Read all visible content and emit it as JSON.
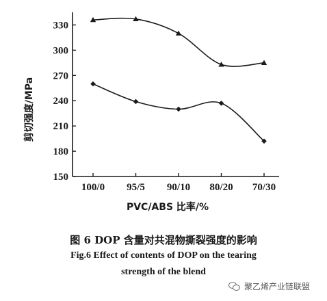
{
  "chart_data": {
    "type": "line",
    "categories": [
      "100/0",
      "95/5",
      "90/10",
      "80/20",
      "70/30"
    ],
    "series": [
      {
        "values": [
          336,
          337,
          320,
          283,
          285
        ],
        "marker": "triangle",
        "color": "#1a1a1a"
      },
      {
        "values": [
          260,
          239,
          230,
          237,
          192
        ],
        "marker": "diamond",
        "color": "#1a1a1a"
      }
    ],
    "ylim": [
      150,
      345
    ],
    "yticks": [
      150,
      180,
      210,
      240,
      270,
      300,
      330
    ],
    "xlabel": "PVC/ABS 比率/%",
    "ylabel": "剪切强度/MPa",
    "grid": false
  },
  "captions": {
    "cn": "图 6  DOP 含量对共混物撕裂强度的影响",
    "en_line1": "Fig.6  Effect of contents of DOP on the tearing",
    "en_line2": "strength of the blend"
  },
  "watermark": {
    "text": "聚乙烯产业链联盟",
    "icon": "wechat-icon"
  }
}
